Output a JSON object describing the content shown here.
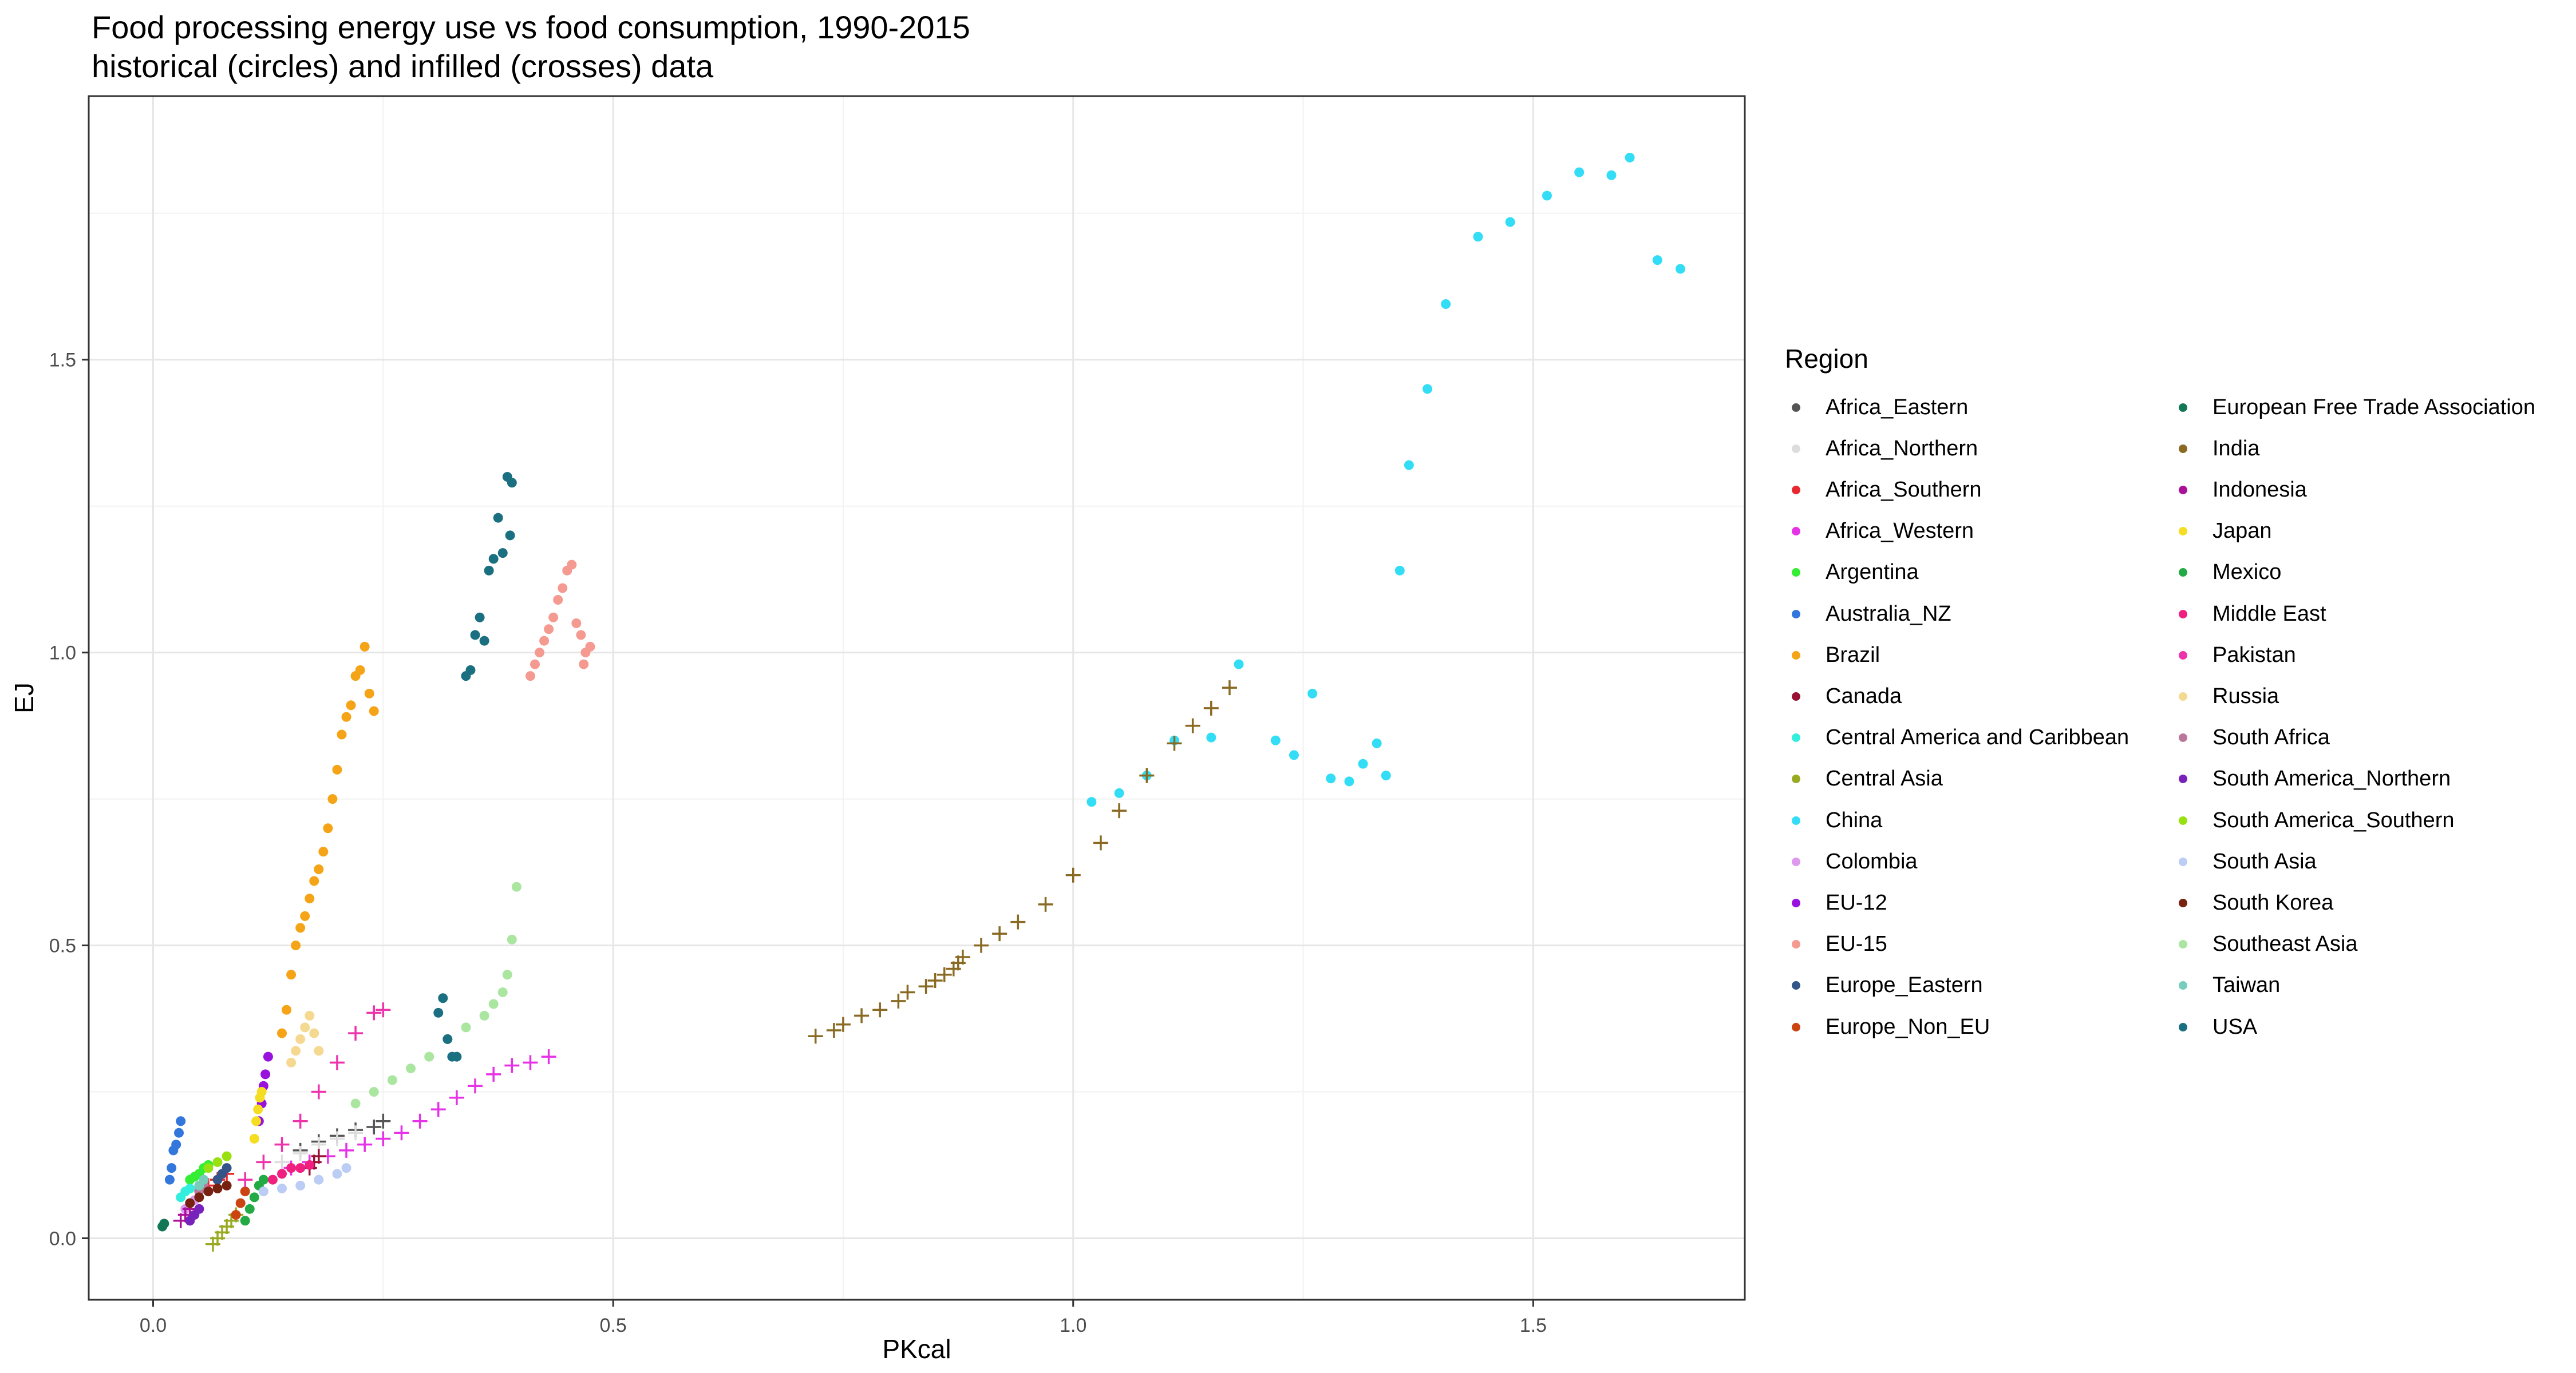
{
  "chart_data": {
    "type": "scatter",
    "title": "Food processing energy use vs food consumption, 1990-2015",
    "subtitle": "historical (circles) and infilled (crosses) data",
    "xlabel": "PKcal",
    "ylabel": "EJ",
    "xlim": [
      -0.07,
      1.73
    ],
    "ylim": [
      -0.105,
      1.95
    ],
    "x_ticks": [
      0.0,
      0.5,
      1.0,
      1.5
    ],
    "x_tick_labels": [
      "0.0",
      "0.5",
      "1.0",
      "1.5"
    ],
    "y_ticks": [
      0.0,
      0.5,
      1.0,
      1.5
    ],
    "y_tick_labels": [
      "0.0",
      "0.5",
      "1.0",
      "1.5"
    ],
    "grid": true,
    "legend_position": "right",
    "legend_title": "Region",
    "series": [
      {
        "name": "Africa_Eastern",
        "color": "#555555",
        "marker": "cross",
        "points": [
          [
            0.16,
            0.15
          ],
          [
            0.18,
            0.165
          ],
          [
            0.2,
            0.175
          ],
          [
            0.22,
            0.185
          ],
          [
            0.24,
            0.19
          ],
          [
            0.25,
            0.2
          ]
        ]
      },
      {
        "name": "Africa_Northern",
        "color": "#dddddd",
        "marker": "cross",
        "points": [
          [
            0.14,
            0.13
          ],
          [
            0.16,
            0.145
          ],
          [
            0.18,
            0.16
          ],
          [
            0.2,
            0.17
          ],
          [
            0.22,
            0.18
          ]
        ]
      },
      {
        "name": "Africa_Southern",
        "color": "#e8282e",
        "marker": "cross",
        "points": [
          [
            0.06,
            0.09
          ],
          [
            0.07,
            0.1
          ],
          [
            0.08,
            0.11
          ]
        ]
      },
      {
        "name": "Africa_Western",
        "color": "#e632e6",
        "marker": "cross",
        "points": [
          [
            0.15,
            0.12
          ],
          [
            0.17,
            0.13
          ],
          [
            0.19,
            0.14
          ],
          [
            0.21,
            0.15
          ],
          [
            0.23,
            0.16
          ],
          [
            0.25,
            0.17
          ],
          [
            0.27,
            0.18
          ],
          [
            0.29,
            0.2
          ],
          [
            0.31,
            0.22
          ],
          [
            0.33,
            0.24
          ],
          [
            0.35,
            0.26
          ],
          [
            0.37,
            0.28
          ],
          [
            0.39,
            0.295
          ],
          [
            0.41,
            0.3
          ],
          [
            0.43,
            0.31
          ]
        ]
      },
      {
        "name": "Argentina",
        "color": "#33ee33",
        "marker": "circle",
        "points": [
          [
            0.04,
            0.1
          ],
          [
            0.045,
            0.105
          ],
          [
            0.05,
            0.11
          ],
          [
            0.055,
            0.12
          ],
          [
            0.06,
            0.125
          ]
        ]
      },
      {
        "name": "Australia_NZ",
        "color": "#3377dd",
        "marker": "circle",
        "points": [
          [
            0.018,
            0.1
          ],
          [
            0.02,
            0.12
          ],
          [
            0.022,
            0.15
          ],
          [
            0.025,
            0.16
          ],
          [
            0.028,
            0.18
          ],
          [
            0.03,
            0.2
          ]
        ]
      },
      {
        "name": "Brazil",
        "color": "#f5a418",
        "marker": "circle",
        "points": [
          [
            0.14,
            0.35
          ],
          [
            0.145,
            0.39
          ],
          [
            0.15,
            0.45
          ],
          [
            0.155,
            0.5
          ],
          [
            0.16,
            0.53
          ],
          [
            0.165,
            0.55
          ],
          [
            0.17,
            0.58
          ],
          [
            0.175,
            0.61
          ],
          [
            0.18,
            0.63
          ],
          [
            0.185,
            0.66
          ],
          [
            0.19,
            0.7
          ],
          [
            0.195,
            0.75
          ],
          [
            0.2,
            0.8
          ],
          [
            0.205,
            0.86
          ],
          [
            0.21,
            0.89
          ],
          [
            0.215,
            0.91
          ],
          [
            0.22,
            0.96
          ],
          [
            0.225,
            0.97
          ],
          [
            0.23,
            1.01
          ],
          [
            0.235,
            0.93
          ],
          [
            0.24,
            0.9
          ]
        ]
      },
      {
        "name": "Canada",
        "color": "#991133",
        "marker": "cross",
        "points": [
          [
            0.17,
            0.12
          ],
          [
            0.175,
            0.13
          ],
          [
            0.18,
            0.14
          ]
        ]
      },
      {
        "name": "Central America and Caribbean",
        "color": "#33eedd",
        "marker": "circle",
        "points": [
          [
            0.03,
            0.07
          ],
          [
            0.035,
            0.08
          ],
          [
            0.04,
            0.085
          ]
        ]
      },
      {
        "name": "Central Asia",
        "color": "#99aa22",
        "marker": "cross",
        "points": [
          [
            0.065,
            -0.01
          ],
          [
            0.07,
            0.0
          ],
          [
            0.075,
            0.01
          ],
          [
            0.08,
            0.02
          ],
          [
            0.085,
            0.03
          ],
          [
            0.09,
            0.04
          ]
        ]
      },
      {
        "name": "China",
        "color": "#33ddf5",
        "marker": "circle",
        "points": [
          [
            1.02,
            0.745
          ],
          [
            1.05,
            0.76
          ],
          [
            1.08,
            0.79
          ],
          [
            1.11,
            0.85
          ],
          [
            1.15,
            0.855
          ],
          [
            1.18,
            0.98
          ],
          [
            1.22,
            0.85
          ],
          [
            1.24,
            0.825
          ],
          [
            1.26,
            0.93
          ],
          [
            1.28,
            0.785
          ],
          [
            1.3,
            0.78
          ],
          [
            1.315,
            0.81
          ],
          [
            1.33,
            0.845
          ],
          [
            1.34,
            0.79
          ],
          [
            1.355,
            1.14
          ],
          [
            1.365,
            1.32
          ],
          [
            1.385,
            1.45
          ],
          [
            1.405,
            1.595
          ],
          [
            1.44,
            1.71
          ],
          [
            1.475,
            1.735
          ],
          [
            1.515,
            1.78
          ],
          [
            1.55,
            1.82
          ],
          [
            1.585,
            1.815
          ],
          [
            1.605,
            1.845
          ],
          [
            1.635,
            1.67
          ],
          [
            1.66,
            1.655
          ]
        ]
      },
      {
        "name": "Colombia",
        "color": "#dd99ee",
        "marker": "circle",
        "points": [
          [
            0.035,
            0.05
          ],
          [
            0.04,
            0.06
          ],
          [
            0.045,
            0.065
          ]
        ]
      },
      {
        "name": "EU-12",
        "color": "#9911dd",
        "marker": "circle",
        "points": [
          [
            0.115,
            0.2
          ],
          [
            0.118,
            0.23
          ],
          [
            0.12,
            0.26
          ],
          [
            0.122,
            0.28
          ],
          [
            0.125,
            0.31
          ]
        ]
      },
      {
        "name": "EU-15",
        "color": "#f59a90",
        "marker": "circle",
        "points": [
          [
            0.41,
            0.96
          ],
          [
            0.415,
            0.98
          ],
          [
            0.42,
            1.0
          ],
          [
            0.425,
            1.02
          ],
          [
            0.43,
            1.04
          ],
          [
            0.435,
            1.06
          ],
          [
            0.44,
            1.09
          ],
          [
            0.445,
            1.11
          ],
          [
            0.45,
            1.14
          ],
          [
            0.455,
            1.15
          ],
          [
            0.46,
            1.05
          ],
          [
            0.465,
            1.03
          ],
          [
            0.47,
            1.0
          ],
          [
            0.475,
            1.01
          ],
          [
            0.468,
            0.98
          ]
        ]
      },
      {
        "name": "Europe_Eastern",
        "color": "#335588",
        "marker": "circle",
        "points": [
          [
            0.07,
            0.1
          ],
          [
            0.075,
            0.11
          ],
          [
            0.08,
            0.12
          ]
        ]
      },
      {
        "name": "Europe_Non_EU",
        "color": "#cc4411",
        "marker": "circle",
        "points": [
          [
            0.09,
            0.04
          ],
          [
            0.095,
            0.06
          ],
          [
            0.1,
            0.08
          ]
        ]
      },
      {
        "name": "European Free Trade Association",
        "color": "#117755",
        "marker": "circle",
        "points": [
          [
            0.01,
            0.02
          ],
          [
            0.012,
            0.025
          ]
        ]
      },
      {
        "name": "India",
        "color": "#8a6a22",
        "marker": "cross",
        "points": [
          [
            0.72,
            0.345
          ],
          [
            0.74,
            0.355
          ],
          [
            0.75,
            0.365
          ],
          [
            0.77,
            0.38
          ],
          [
            0.79,
            0.39
          ],
          [
            0.81,
            0.405
          ],
          [
            0.82,
            0.42
          ],
          [
            0.84,
            0.43
          ],
          [
            0.85,
            0.44
          ],
          [
            0.86,
            0.45
          ],
          [
            0.87,
            0.46
          ],
          [
            0.875,
            0.47
          ],
          [
            0.88,
            0.48
          ],
          [
            0.9,
            0.5
          ],
          [
            0.92,
            0.52
          ],
          [
            0.94,
            0.54
          ],
          [
            0.97,
            0.57
          ],
          [
            1.0,
            0.62
          ],
          [
            1.03,
            0.675
          ],
          [
            1.05,
            0.73
          ],
          [
            1.08,
            0.79
          ],
          [
            1.11,
            0.845
          ],
          [
            1.13,
            0.875
          ],
          [
            1.15,
            0.905
          ],
          [
            1.17,
            0.94
          ]
        ]
      },
      {
        "name": "Indonesia",
        "color": "#aa1199",
        "marker": "cross",
        "points": [
          [
            0.03,
            0.03
          ],
          [
            0.035,
            0.04
          ],
          [
            0.04,
            0.05
          ]
        ]
      },
      {
        "name": "Japan",
        "color": "#f5dd22",
        "marker": "circle",
        "points": [
          [
            0.11,
            0.17
          ],
          [
            0.112,
            0.2
          ],
          [
            0.114,
            0.22
          ],
          [
            0.116,
            0.24
          ],
          [
            0.118,
            0.25
          ]
        ]
      },
      {
        "name": "Mexico",
        "color": "#22aa44",
        "marker": "circle",
        "points": [
          [
            0.1,
            0.03
          ],
          [
            0.105,
            0.05
          ],
          [
            0.11,
            0.07
          ],
          [
            0.115,
            0.09
          ],
          [
            0.12,
            0.1
          ]
        ]
      },
      {
        "name": "Middle East",
        "color": "#f02080",
        "marker": "circle",
        "points": [
          [
            0.13,
            0.1
          ],
          [
            0.14,
            0.11
          ],
          [
            0.15,
            0.12
          ],
          [
            0.16,
            0.12
          ],
          [
            0.17,
            0.125
          ]
        ]
      },
      {
        "name": "Pakistan",
        "color": "#ee33aa",
        "marker": "cross",
        "points": [
          [
            0.1,
            0.1
          ],
          [
            0.12,
            0.13
          ],
          [
            0.14,
            0.16
          ],
          [
            0.16,
            0.2
          ],
          [
            0.18,
            0.25
          ],
          [
            0.2,
            0.3
          ],
          [
            0.22,
            0.35
          ],
          [
            0.24,
            0.385
          ],
          [
            0.25,
            0.39
          ]
        ]
      },
      {
        "name": "Russia",
        "color": "#f5d990",
        "marker": "circle",
        "points": [
          [
            0.15,
            0.3
          ],
          [
            0.155,
            0.32
          ],
          [
            0.16,
            0.34
          ],
          [
            0.165,
            0.36
          ],
          [
            0.17,
            0.38
          ],
          [
            0.175,
            0.35
          ],
          [
            0.18,
            0.32
          ]
        ]
      },
      {
        "name": "South Africa",
        "color": "#bb7799",
        "marker": "circle",
        "points": [
          [
            0.05,
            0.08
          ],
          [
            0.055,
            0.09
          ]
        ]
      },
      {
        "name": "South America_Northern",
        "color": "#7722bb",
        "marker": "circle",
        "points": [
          [
            0.04,
            0.03
          ],
          [
            0.045,
            0.04
          ],
          [
            0.05,
            0.05
          ]
        ]
      },
      {
        "name": "South America_Southern",
        "color": "#99e010",
        "marker": "circle",
        "points": [
          [
            0.06,
            0.12
          ],
          [
            0.07,
            0.13
          ],
          [
            0.08,
            0.14
          ]
        ]
      },
      {
        "name": "South Asia",
        "color": "#bbccf5",
        "marker": "circle",
        "points": [
          [
            0.12,
            0.08
          ],
          [
            0.14,
            0.085
          ],
          [
            0.16,
            0.09
          ],
          [
            0.18,
            0.1
          ],
          [
            0.2,
            0.11
          ],
          [
            0.21,
            0.12
          ]
        ]
      },
      {
        "name": "South Korea",
        "color": "#772211",
        "marker": "circle",
        "points": [
          [
            0.04,
            0.06
          ],
          [
            0.05,
            0.07
          ],
          [
            0.06,
            0.08
          ],
          [
            0.07,
            0.085
          ],
          [
            0.08,
            0.09
          ]
        ]
      },
      {
        "name": "Southeast Asia",
        "color": "#aae6a0",
        "marker": "circle",
        "points": [
          [
            0.22,
            0.23
          ],
          [
            0.24,
            0.25
          ],
          [
            0.26,
            0.27
          ],
          [
            0.28,
            0.29
          ],
          [
            0.3,
            0.31
          ],
          [
            0.32,
            0.34
          ],
          [
            0.34,
            0.36
          ],
          [
            0.36,
            0.38
          ],
          [
            0.37,
            0.4
          ],
          [
            0.38,
            0.42
          ],
          [
            0.385,
            0.45
          ],
          [
            0.39,
            0.51
          ],
          [
            0.395,
            0.6
          ]
        ]
      },
      {
        "name": "Taiwan",
        "color": "#77ccbb",
        "marker": "circle",
        "points": [
          [
            0.05,
            0.09
          ],
          [
            0.055,
            0.1
          ]
        ]
      },
      {
        "name": "USA",
        "color": "#1a7080",
        "marker": "circle",
        "points": [
          [
            0.34,
            0.96
          ],
          [
            0.345,
            0.97
          ],
          [
            0.35,
            1.03
          ],
          [
            0.355,
            1.06
          ],
          [
            0.36,
            1.02
          ],
          [
            0.365,
            1.14
          ],
          [
            0.37,
            1.16
          ],
          [
            0.375,
            1.23
          ],
          [
            0.38,
            1.17
          ],
          [
            0.385,
            1.3
          ],
          [
            0.39,
            1.29
          ],
          [
            0.388,
            1.2
          ],
          [
            0.31,
            0.385
          ],
          [
            0.315,
            0.41
          ],
          [
            0.32,
            0.34
          ],
          [
            0.325,
            0.31
          ],
          [
            0.33,
            0.31
          ]
        ]
      }
    ]
  }
}
